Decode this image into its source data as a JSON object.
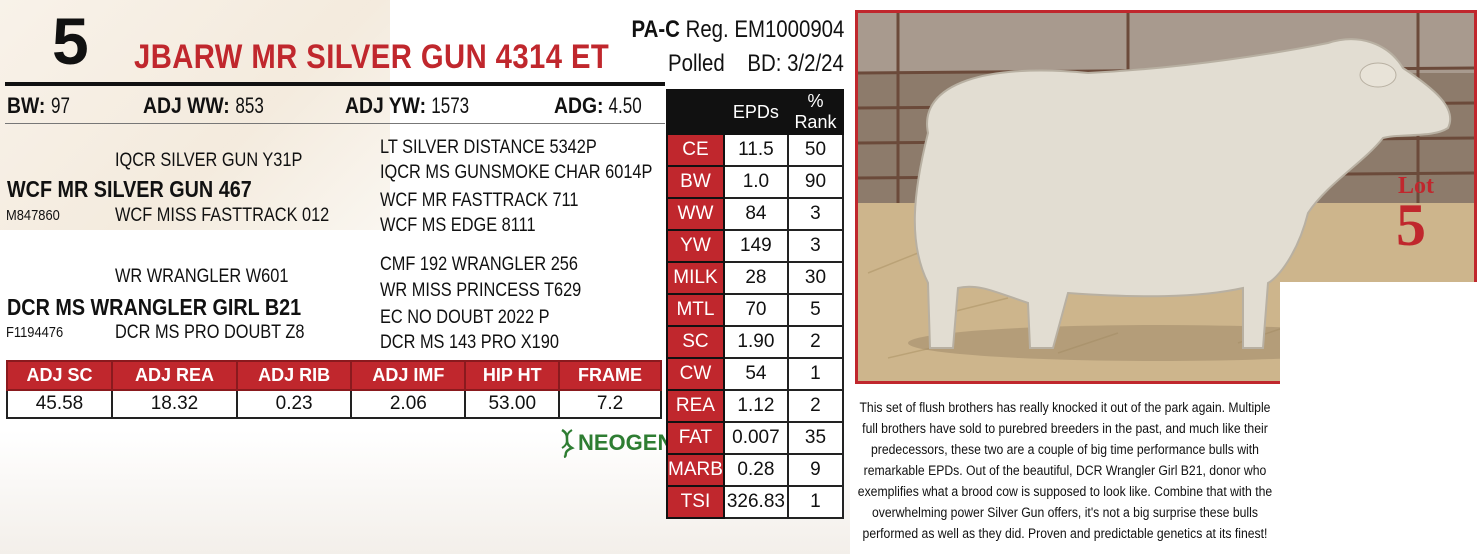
{
  "lot": "5",
  "name": "JBARW MR SILVER GUN 4314 ET",
  "registry": {
    "breed": "PA-C",
    "reg_label": "Reg.",
    "reg_no": "EM1000904",
    "polled": "Polled",
    "bd_label": "BD:",
    "bd": "3/2/24"
  },
  "weights": [
    {
      "label": "BW:",
      "value": "97"
    },
    {
      "label": "ADJ WW:",
      "value": "853"
    },
    {
      "label": "ADJ YW:",
      "value": "1573"
    },
    {
      "label": "ADG:",
      "value": "4.50"
    }
  ],
  "pedigree": {
    "sire": "WCF MR SILVER GUN 467",
    "sire_reg": "M847860",
    "sire_sire": "IQCR SILVER GUN Y31P",
    "sire_dam": "WCF MISS FASTTRACK 012",
    "sss": "LT SILVER DISTANCE 5342P",
    "ssd": "IQCR MS GUNSMOKE CHAR 6014P",
    "sds": "WCF MR FASTTRACK 711",
    "sdd": "WCF MS EDGE 8111",
    "dam": "DCR MS WRANGLER GIRL B21",
    "dam_reg": "F1194476",
    "dam_sire": "WR WRANGLER W601",
    "dam_dam": "DCR MS PRO DOUBT Z8",
    "dss": "CMF 192 WRANGLER 256",
    "dsd": "WR MISS PRINCESS T629",
    "dds": "EC NO DOUBT 2022 P",
    "ddd": "DCR MS 143 PRO X190"
  },
  "performance": {
    "headers": [
      "ADJ SC",
      "ADJ REA",
      "ADJ RIB",
      "ADJ IMF",
      "HIP HT",
      "FRAME"
    ],
    "values": [
      "45.58",
      "18.32",
      "0.23",
      "2.06",
      "53.00",
      "7.2"
    ]
  },
  "logo_text": "NEOGEN",
  "epd_table": {
    "headers": [
      "EPDs",
      "% Rank"
    ],
    "rows": [
      {
        "trait": "CE",
        "epd": "11.5",
        "rank": "50"
      },
      {
        "trait": "BW",
        "epd": "1.0",
        "rank": "90"
      },
      {
        "trait": "WW",
        "epd": "84",
        "rank": "3"
      },
      {
        "trait": "YW",
        "epd": "149",
        "rank": "3"
      },
      {
        "trait": "MILK",
        "epd": "28",
        "rank": "30"
      },
      {
        "trait": "MTL",
        "epd": "70",
        "rank": "5"
      },
      {
        "trait": "SC",
        "epd": "1.90",
        "rank": "2"
      },
      {
        "trait": "CW",
        "epd": "54",
        "rank": "1"
      },
      {
        "trait": "REA",
        "epd": "1.12",
        "rank": "2"
      },
      {
        "trait": "FAT",
        "epd": "0.007",
        "rank": "35"
      },
      {
        "trait": "MARB",
        "epd": "0.28",
        "rank": "9"
      },
      {
        "trait": "TSI",
        "epd": "326.83",
        "rank": "1"
      }
    ]
  },
  "photo": {
    "lot_label": "Lot",
    "lot_number": "5"
  },
  "description": "This set of flush brothers has really knocked it out of the park again. Multiple full brothers have sold to purebred breeders in the past, and much like their predecessors, these two are a couple of big time performance bulls with remarkable EPDs. Out of the beautiful, DCR Wrangler Girl B21, donor who exemplifies what a brood cow is supposed to look like. Combine that with the overwhelming power Silver Gun offers, it's not a big surprise these bulls performed as well as they did. Proven and predictable genetics at its finest!",
  "colors": {
    "accent": "#c0272d",
    "logo_green": "#2e7d32"
  }
}
